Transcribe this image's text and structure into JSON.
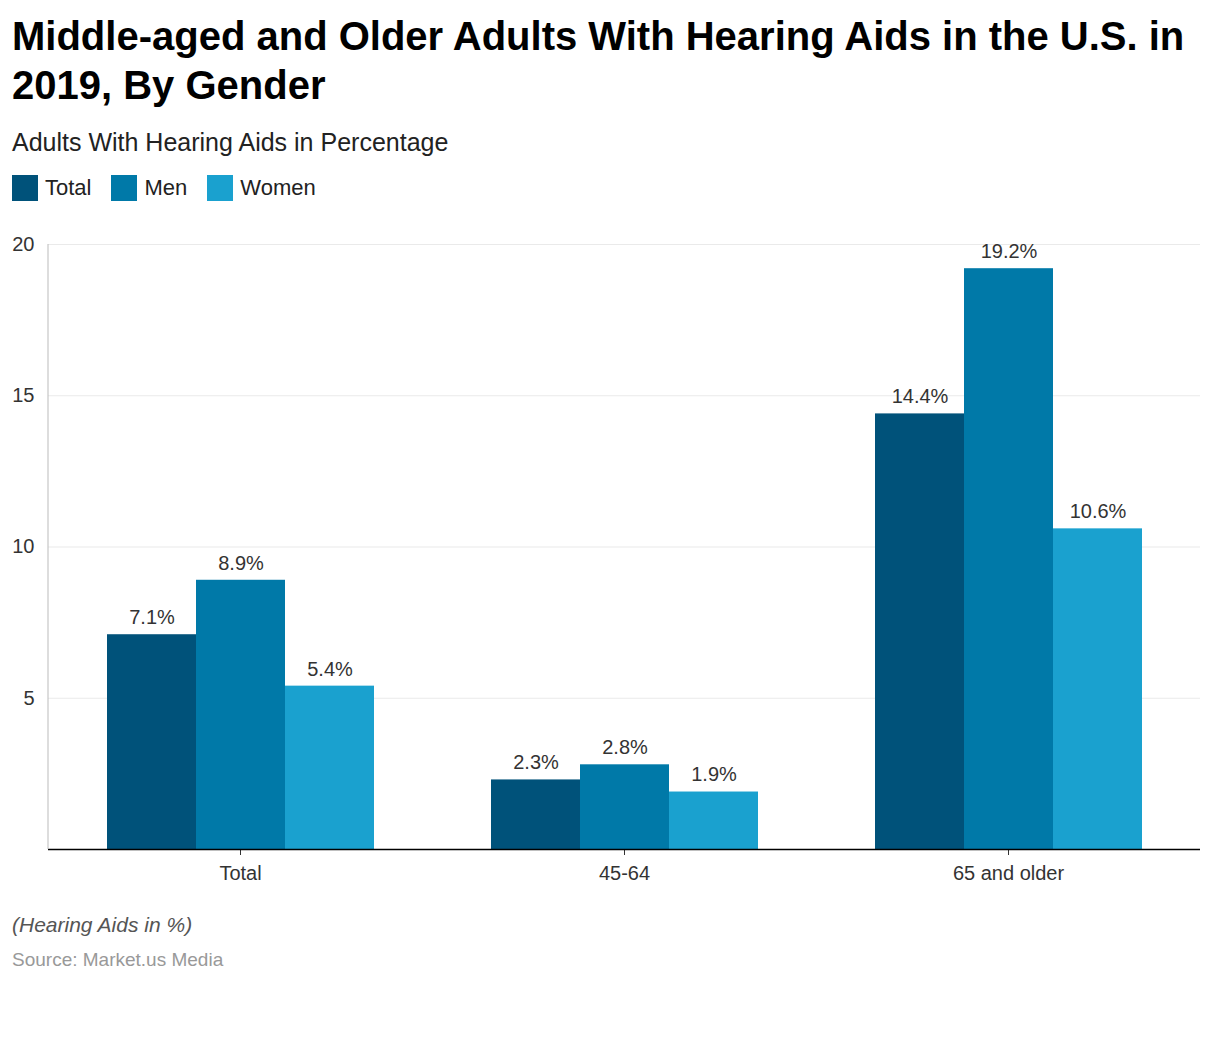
{
  "chart_data": {
    "type": "bar",
    "title": "Middle-aged and Older Adults With Hearing Aids in the U.S. in 2019, By Gender",
    "subtitle": "Adults With Hearing Aids in Percentage",
    "caption": "(Hearing Aids in %)",
    "source": "Source: Market.us Media",
    "categories": [
      "Total",
      "45-64",
      "65 and older"
    ],
    "series": [
      {
        "name": "Total",
        "color": "#00527a",
        "values": [
          7.1,
          2.3,
          14.4
        ],
        "value_labels": [
          "7.1%",
          "2.3%",
          "14.4%"
        ]
      },
      {
        "name": "Men",
        "color": "#0079a8",
        "values": [
          8.9,
          2.8,
          19.2
        ],
        "value_labels": [
          "8.9%",
          "2.8%",
          "19.2%"
        ]
      },
      {
        "name": "Women",
        "color": "#1aa1cf",
        "values": [
          5.4,
          1.9,
          10.6
        ],
        "value_labels": [
          "5.4%",
          "1.9%",
          "10.6%"
        ]
      }
    ],
    "ylim": [
      0,
      20
    ],
    "yticks": [
      5,
      10,
      15,
      20
    ],
    "grid": true,
    "data_labels": true,
    "legend": "top-left"
  }
}
